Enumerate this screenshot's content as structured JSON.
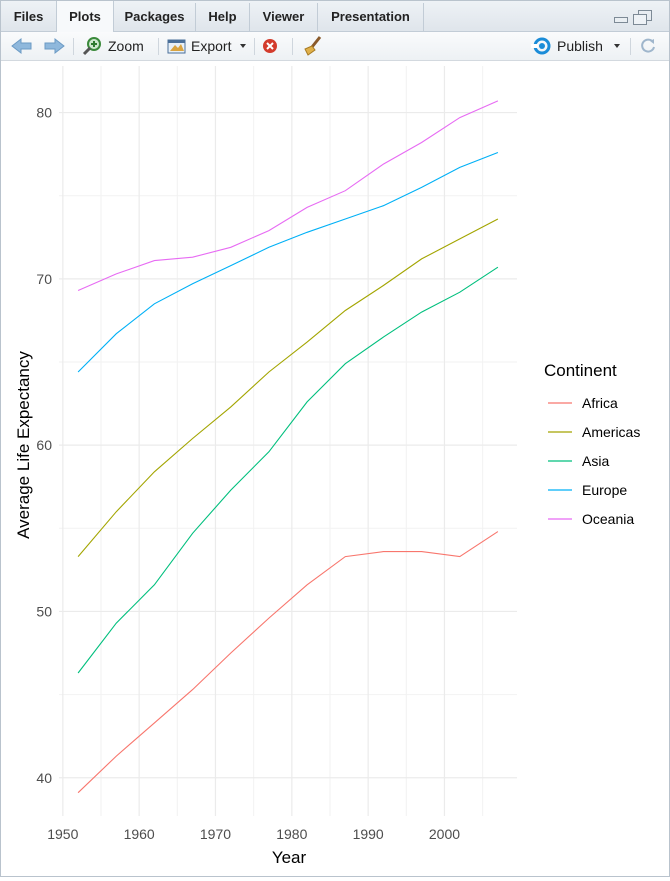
{
  "tabs": [
    {
      "label": "Files"
    },
    {
      "label": "Plots"
    },
    {
      "label": "Packages"
    },
    {
      "label": "Help"
    },
    {
      "label": "Viewer"
    },
    {
      "label": "Presentation"
    }
  ],
  "toolbar": {
    "zoom_label": "Zoom",
    "export_label": "Export",
    "publish_label": "Publish"
  },
  "colors": {
    "Africa": "#F8766D",
    "Americas": "#A3A500",
    "Asia": "#00BF7D",
    "Europe": "#00B0F6",
    "Oceania": "#E76BF3"
  },
  "chart_data": {
    "type": "line",
    "xlabel": "Year",
    "ylabel": "Average Life Expectancy",
    "xlim": [
      1949.5,
      2009.5
    ],
    "ylim": [
      37.7,
      82.8
    ],
    "x_ticks": [
      1950,
      1960,
      1970,
      1980,
      1990,
      2000
    ],
    "y_ticks": [
      40,
      50,
      60,
      70,
      80
    ],
    "legend_title": "Continent",
    "legend_position": "right",
    "grid": true,
    "x": [
      1952,
      1957,
      1962,
      1967,
      1972,
      1977,
      1982,
      1987,
      1992,
      1997,
      2002,
      2007
    ],
    "series": [
      {
        "name": "Africa",
        "color": "#F8766D",
        "values": [
          39.1,
          41.3,
          43.3,
          45.3,
          47.5,
          49.6,
          51.6,
          53.3,
          53.6,
          53.6,
          53.3,
          54.8
        ]
      },
      {
        "name": "Americas",
        "color": "#A3A500",
        "values": [
          53.3,
          56.0,
          58.4,
          60.4,
          62.3,
          64.4,
          66.2,
          68.1,
          69.6,
          71.2,
          72.4,
          73.6
        ]
      },
      {
        "name": "Asia",
        "color": "#00BF7D",
        "values": [
          46.3,
          49.3,
          51.6,
          54.7,
          57.3,
          59.6,
          62.6,
          64.9,
          66.5,
          68.0,
          69.2,
          70.7
        ]
      },
      {
        "name": "Europe",
        "color": "#00B0F6",
        "values": [
          64.4,
          66.7,
          68.5,
          69.7,
          70.8,
          71.9,
          72.8,
          73.6,
          74.4,
          75.5,
          76.7,
          77.6
        ]
      },
      {
        "name": "Oceania",
        "color": "#E76BF3",
        "values": [
          69.3,
          70.3,
          71.1,
          71.3,
          71.9,
          72.9,
          74.3,
          75.3,
          76.9,
          78.2,
          79.7,
          80.7
        ]
      }
    ]
  }
}
